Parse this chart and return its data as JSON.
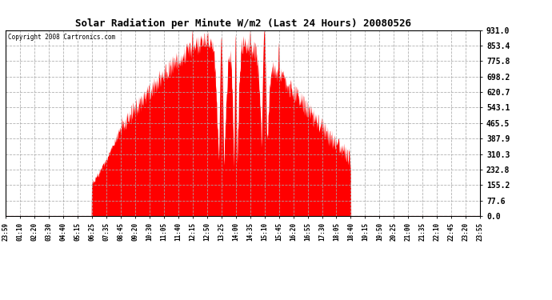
{
  "title": "Solar Radiation per Minute W/m2 (Last 24 Hours) 20080526",
  "copyright_text": "Copyright 2008 Cartronics.com",
  "bar_color": "#ff0000",
  "background_color": "#ffffff",
  "grid_color": "#aaaaaa",
  "ytick_labels": [
    0.0,
    77.6,
    155.2,
    232.8,
    310.3,
    387.9,
    465.5,
    543.1,
    620.7,
    698.2,
    775.8,
    853.4,
    931.0
  ],
  "ymax": 931.0,
  "ymin": 0.0,
  "xtick_labels": [
    "23:59",
    "01:10",
    "02:20",
    "03:30",
    "04:40",
    "05:15",
    "06:25",
    "07:35",
    "08:45",
    "09:20",
    "10:30",
    "11:05",
    "11:40",
    "12:15",
    "12:50",
    "13:25",
    "14:00",
    "14:35",
    "15:10",
    "15:45",
    "16:20",
    "16:55",
    "17:30",
    "18:05",
    "18:40",
    "19:15",
    "19:50",
    "20:25",
    "21:00",
    "21:35",
    "22:10",
    "22:45",
    "23:20",
    "23:55"
  ]
}
